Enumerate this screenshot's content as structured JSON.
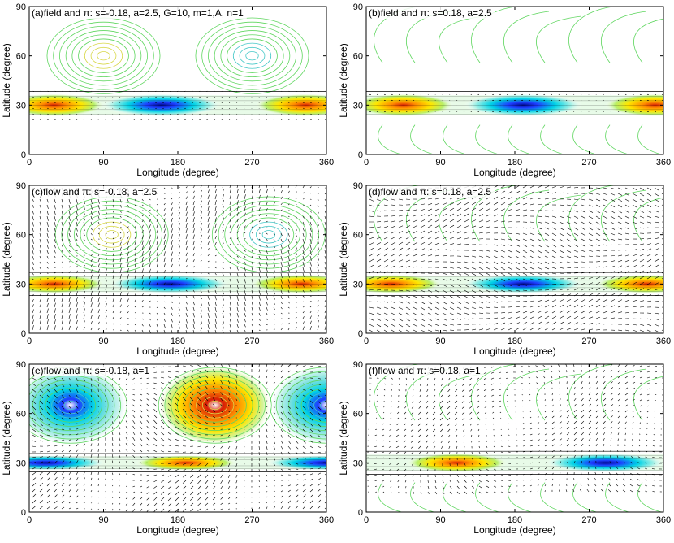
{
  "figure": {
    "colors": {
      "contour": "#5fd65f",
      "contour_warm": "#d8d84a",
      "contour_cool": "#46c8c8",
      "arrow": "#000000",
      "frame": "#000000",
      "band_red": "#d81e05",
      "band_orange": "#ff8c00",
      "band_yellow": "#ffe600",
      "band_cyan": "#00d2e6",
      "band_blue": "#1e3cff",
      "band_navy": "#000a8c"
    }
  },
  "chart_data": [
    {
      "type": "heatmap",
      "panel": "a",
      "title": "(a)field and π: s=-0.18, a=2.5, G=10, m=1,A, n=1",
      "xlabel": "Longitude (degree)",
      "ylabel": "Latitude (degree)",
      "xlim": [
        0,
        360
      ],
      "ylim": [
        0,
        90
      ],
      "xticks": [
        0,
        90,
        180,
        270,
        360
      ],
      "yticks": [
        0,
        30,
        60,
        90
      ],
      "band": {
        "lat_center": 30,
        "lat_halfwidth": 6,
        "positive_lons": [
          30,
          335
        ],
        "negative_lons": [
          160
        ],
        "edge_lons": []
      },
      "cells": [
        {
          "lon": 90,
          "lat": 60,
          "sign": "warm"
        },
        {
          "lon": 270,
          "lat": 60,
          "sign": "cool"
        }
      ],
      "arrows": {
        "region_lat": [
          20,
          40
        ],
        "style": "short"
      },
      "open_contours": false
    },
    {
      "type": "heatmap",
      "panel": "b",
      "title": "(b)field and π: s=0.18, a=2.5",
      "xlabel": "Longitude (degree)",
      "ylabel": "Latitude (degree)",
      "xlim": [
        0,
        360
      ],
      "ylim": [
        0,
        90
      ],
      "xticks": [
        0,
        90,
        180,
        270,
        360
      ],
      "yticks": [
        0,
        30,
        60,
        90
      ],
      "band": {
        "lat_center": 30,
        "lat_halfwidth": 6,
        "positive_lons": [
          45,
          350
        ],
        "negative_lons": [
          190
        ],
        "edge_lons": []
      },
      "cells": [],
      "arrows": {
        "region_lat": [
          24,
          38
        ],
        "style": "short"
      },
      "open_contours": true
    },
    {
      "type": "heatmap",
      "panel": "c",
      "title": "(c)flow and π: s=-0.18, a=2.5",
      "xlabel": "Longitude (degree)",
      "ylabel": "Latitude (degree)",
      "xlim": [
        0,
        360
      ],
      "ylim": [
        0,
        90
      ],
      "xticks": [
        0,
        90,
        180,
        270,
        360
      ],
      "yticks": [
        0,
        30,
        60,
        90
      ],
      "band": {
        "lat_center": 30,
        "lat_halfwidth": 5,
        "positive_lons": [
          30,
          330
        ],
        "negative_lons": [
          170
        ],
        "edge_lons": []
      },
      "cells": [
        {
          "lon": 100,
          "lat": 60,
          "sign": "warm"
        },
        {
          "lon": 290,
          "lat": 60,
          "sign": "cool"
        }
      ],
      "arrows": {
        "region_lat": [
          0,
          90
        ],
        "style": "vertical"
      },
      "open_contours": false
    },
    {
      "type": "heatmap",
      "panel": "d",
      "title": "(d)flow and π: s=0.18, a=2.5",
      "xlabel": "Longitude (degree)",
      "ylabel": "Latitude (degree)",
      "xlim": [
        0,
        360
      ],
      "ylim": [
        0,
        90
      ],
      "xticks": [
        0,
        90,
        180,
        270,
        360
      ],
      "yticks": [
        0,
        30,
        60,
        90
      ],
      "band": {
        "lat_center": 30,
        "lat_halfwidth": 5,
        "positive_lons": [
          30,
          340
        ],
        "negative_lons": [
          190
        ],
        "edge_lons": []
      },
      "cells": [],
      "arrows": {
        "region_lat": [
          0,
          90
        ],
        "style": "slanted"
      },
      "open_contours": true
    },
    {
      "type": "heatmap",
      "panel": "e",
      "title": "(e)flow and π: s=-0.18, a=1",
      "xlabel": "Longitude (degree)",
      "ylabel": "Latitude (degree)",
      "xlim": [
        0,
        360
      ],
      "ylim": [
        0,
        90
      ],
      "xticks": [
        0,
        90,
        180,
        270,
        360
      ],
      "yticks": [
        0,
        30,
        60,
        90
      ],
      "band": {
        "lat_center": 30,
        "lat_halfwidth": 4,
        "positive_lons": [
          190
        ],
        "negative_lons": [
          20,
          360
        ],
        "edge_lons": []
      },
      "cells": [
        {
          "lon": 50,
          "lat": 65,
          "sign": "cool"
        },
        {
          "lon": 225,
          "lat": 65,
          "sign": "warm"
        },
        {
          "lon": 360,
          "lat": 65,
          "sign": "cool"
        }
      ],
      "arrows": {
        "region_lat": [
          0,
          90
        ],
        "style": "mixed"
      },
      "open_contours": false
    },
    {
      "type": "heatmap",
      "panel": "f",
      "title": "(f)flow and π: s=0.18, a=1",
      "xlabel": "Longitude (degree)",
      "ylabel": "Latitude (degree)",
      "xlim": [
        0,
        360
      ],
      "ylim": [
        0,
        90
      ],
      "xticks": [
        0,
        90,
        180,
        270,
        360
      ],
      "yticks": [
        0,
        30,
        60,
        90
      ],
      "band": {
        "lat_center": 30,
        "lat_halfwidth": 5,
        "positive_lons": [
          110
        ],
        "negative_lons": [
          290
        ],
        "edge_lons": []
      },
      "cells": [],
      "arrows": {
        "region_lat": [
          10,
          90
        ],
        "style": "inner"
      },
      "open_contours": true
    }
  ]
}
